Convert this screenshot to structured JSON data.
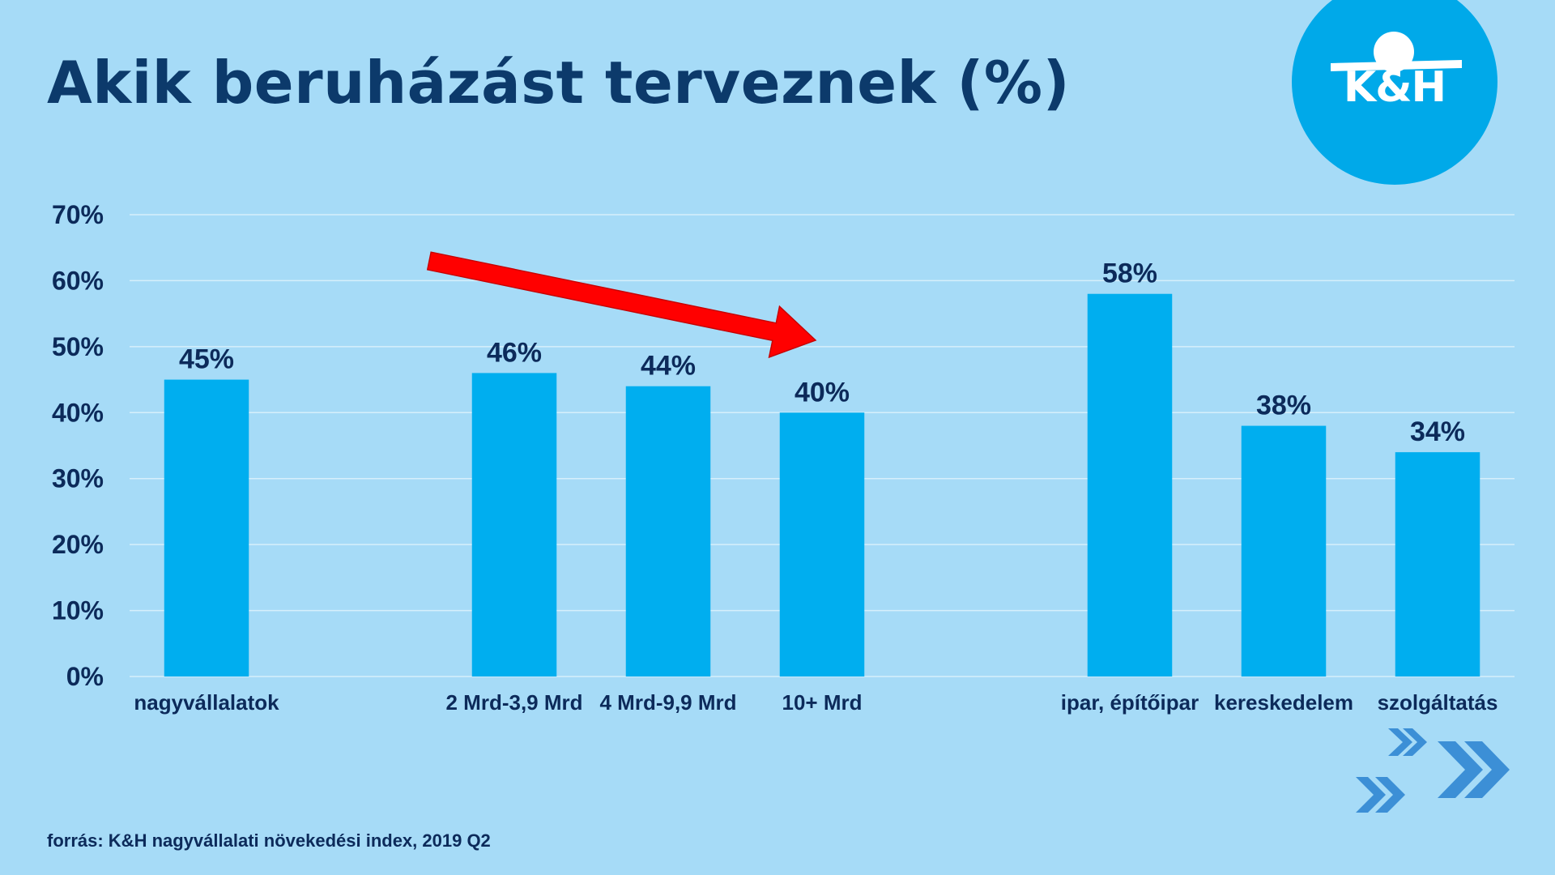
{
  "title": "Akik beruházást terveznek (%)",
  "logo": {
    "text": "K&H",
    "color": "#00a9e9"
  },
  "source": "forrás: K&H nagyvállalati növekedési index, 2019 Q2",
  "colors": {
    "bar": "#00aeef",
    "background": "#a6dbf7",
    "gridline": "#d6effb",
    "text_dark": "#0c2a5a",
    "arrow": "#ff0000",
    "chevron": "#3c8fd6"
  },
  "chart_data": {
    "type": "bar",
    "title": "Akik beruházást terveznek (%)",
    "xlabel": "",
    "ylabel": "",
    "ylim": [
      0,
      70
    ],
    "yticks": [
      0,
      10,
      20,
      30,
      40,
      50,
      60,
      70
    ],
    "ytick_labels": [
      "0%",
      "10%",
      "20%",
      "30%",
      "40%",
      "50%",
      "60%",
      "70%"
    ],
    "categories": [
      "nagyvállalatok",
      "",
      "2 Mrd-3,9 Mrd",
      "4 Mrd-9,9 Mrd",
      "10+ Mrd",
      "",
      "ipar, építőipar",
      "kereskedelem",
      "szolgáltatás"
    ],
    "values": [
      45,
      null,
      46,
      44,
      40,
      null,
      58,
      38,
      34
    ],
    "data_labels": [
      "45%",
      "",
      "46%",
      "44%",
      "40%",
      "",
      "58%",
      "38%",
      "34%"
    ],
    "grid": true,
    "legend": "none",
    "annotation": "downward red arrow from 2 Mrd-3,9 Mrd toward 10+ Mrd"
  }
}
